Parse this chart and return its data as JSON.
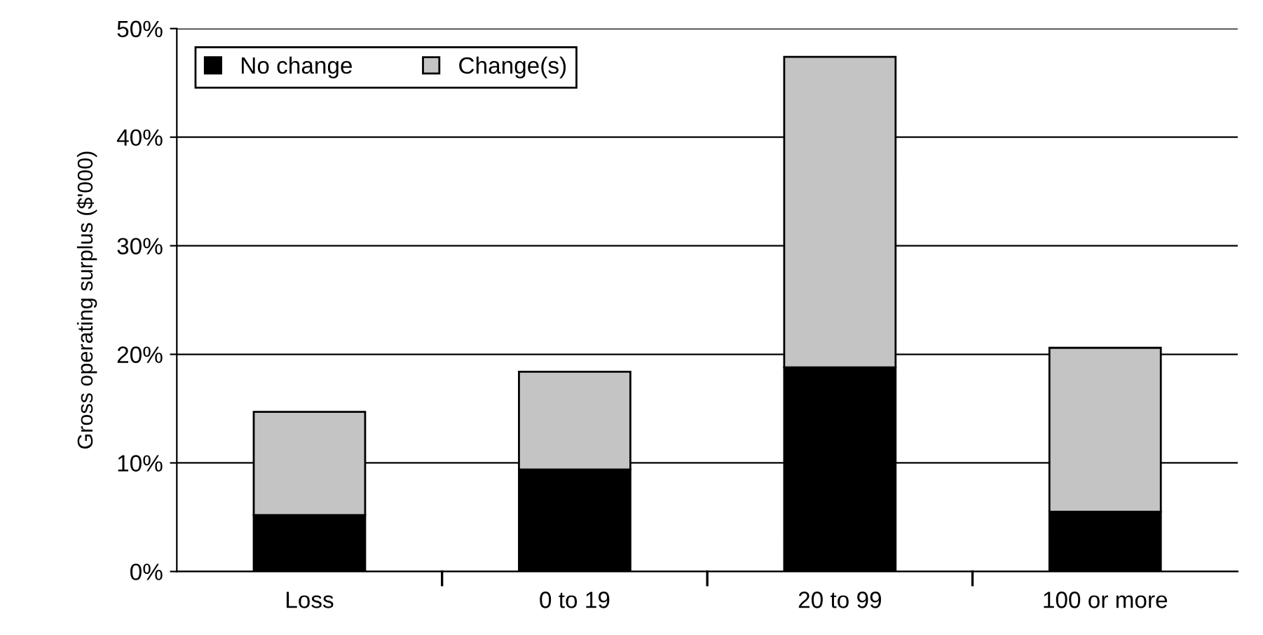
{
  "chart_data": {
    "type": "bar",
    "stacked": true,
    "ylabel": "Gross operating surplus ($'000)",
    "categories": [
      "Loss",
      "0 to 19",
      "20 to 99",
      "100 or more"
    ],
    "series": [
      {
        "name": "No change",
        "color": "#000000",
        "values": [
          5.2,
          9.4,
          18.8,
          5.5
        ]
      },
      {
        "name": "Change(s)",
        "color": "#c4c4c4",
        "values": [
          9.5,
          9.0,
          28.6,
          15.1
        ]
      }
    ],
    "ylim": [
      0,
      50
    ],
    "yticks": [
      {
        "value": 0,
        "label": "0%"
      },
      {
        "value": 10,
        "label": "10%"
      },
      {
        "value": 20,
        "label": "20%"
      },
      {
        "value": 30,
        "label": "30%"
      },
      {
        "value": 40,
        "label": "40%"
      },
      {
        "value": 50,
        "label": "50%"
      }
    ],
    "grid": "y",
    "legend": "top left"
  }
}
